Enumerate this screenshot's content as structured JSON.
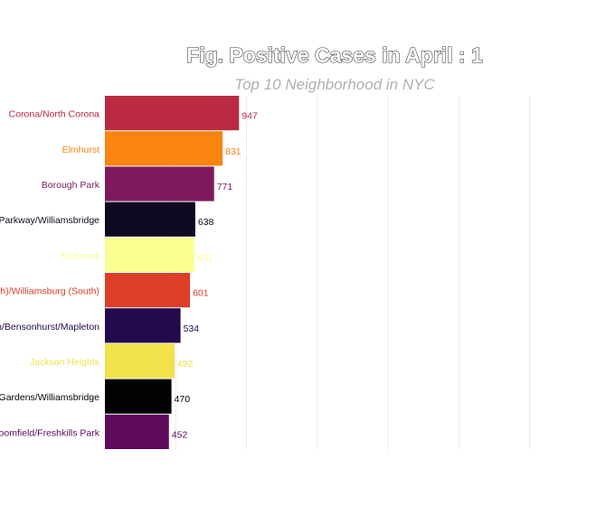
{
  "chart_data": {
    "type": "bar",
    "orientation": "horizontal",
    "title": "Fig. Positive Cases in April : 1",
    "subtitle": "Top 10 Neighborhood in NYC",
    "xlim": [
      0,
      3500
    ],
    "grid": true,
    "legend": "none",
    "categories": [
      "Corona/North Corona",
      "Elmhurst",
      "Borough Park",
      "Co-op City/Pelham Parkway/Williamsbridge",
      "Midwood",
      "Williamsburg (North)/Williamsburg (South)",
      "Bath Beach/Bensonhurst/Mapleton",
      "Jackson Heights",
      "Laconia/Olinville/Wakefield Gardens/Williamsbridge",
      "Bulls Head/Bloomfield/Freshkills Park"
    ],
    "values": [
      947,
      831,
      771,
      638,
      631,
      601,
      534,
      492,
      470,
      452
    ],
    "colors": [
      "#bb2a40",
      "#f9840f",
      "#7e1a5c",
      "#0f0a22",
      "#fbfe91",
      "#dc3e28",
      "#24094c",
      "#f1e14b",
      "#030303",
      "#5e0b5c"
    ]
  }
}
